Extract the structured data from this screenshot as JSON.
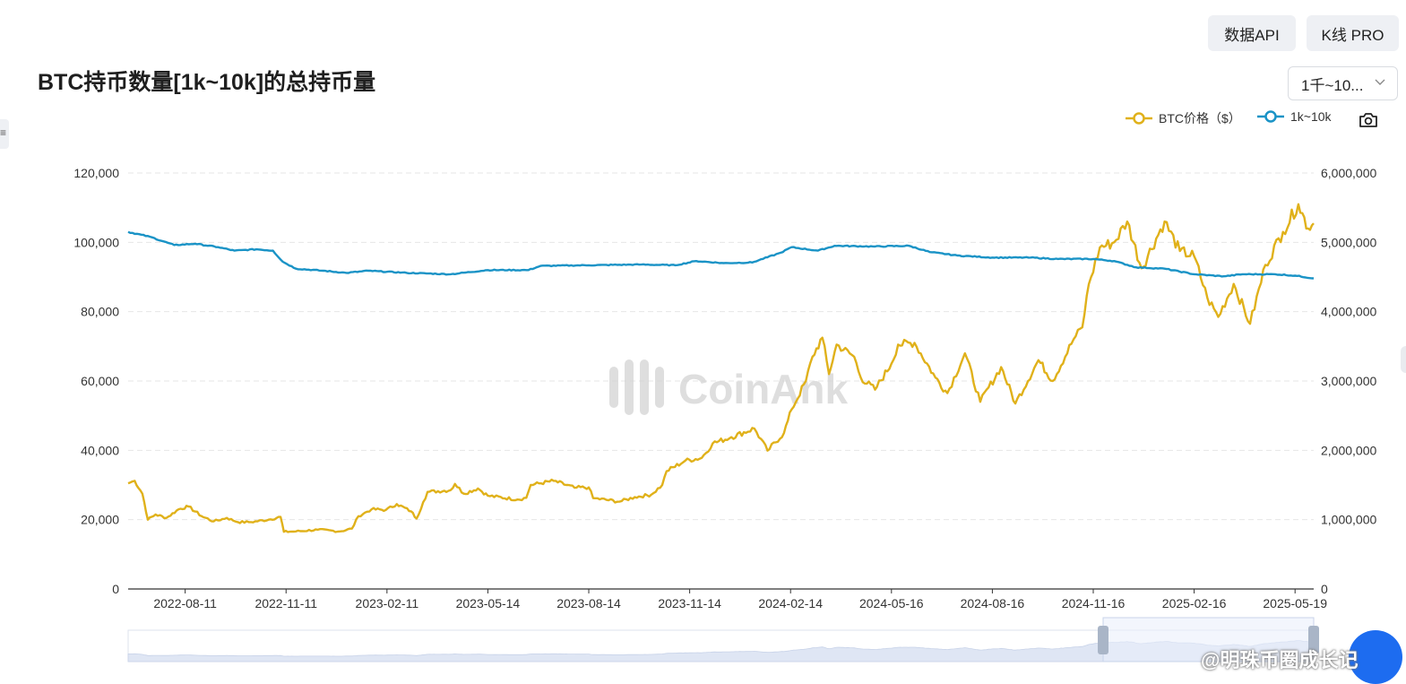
{
  "header": {
    "api_button": "数据API",
    "kline_button": "K线 PRO",
    "title": "BTC持币数量[1k~10k]的总持币量",
    "range_select": "1千~10..."
  },
  "colors": {
    "btc_price": "#e0b11a",
    "holdings": "#1a93c6",
    "grid": "#e6e6e6",
    "slider_window": "#e9eefb"
  },
  "icons": {
    "camera": "camera-icon",
    "chevron": "chevron-down-icon",
    "credit": "share-icon"
  },
  "watermark": "CoinAnk",
  "credit_text": "@明珠币圈成长记",
  "chart_data": {
    "type": "line",
    "legend_position": "top-right",
    "grid": true,
    "x_ticks": [
      "2022-08-11",
      "2022-11-11",
      "2023-02-11",
      "2023-05-14",
      "2023-08-14",
      "2023-11-14",
      "2024-02-14",
      "2024-05-16",
      "2024-08-16",
      "2024-11-16",
      "2025-02-16",
      "2025-05-19"
    ],
    "x_range": [
      "2022-06-20",
      "2025-06-05"
    ],
    "y_left": {
      "ticks": [
        "0",
        "20,000",
        "40,000",
        "60,000",
        "80,000",
        "100,000",
        "120,000"
      ],
      "range": [
        0,
        120000
      ]
    },
    "y_right": {
      "ticks": [
        "0",
        "1,000,000",
        "2,000,000",
        "3,000,000",
        "4,000,000",
        "5,000,000",
        "6,000,000"
      ],
      "range": [
        0,
        6000000
      ]
    },
    "series": [
      {
        "name": "BTC价格（$）",
        "axis": "left",
        "points": [
          [
            "2022-06-20",
            30500
          ],
          [
            "2022-06-26",
            31200
          ],
          [
            "2022-07-03",
            27500
          ],
          [
            "2022-07-08",
            20000
          ],
          [
            "2022-07-15",
            21500
          ],
          [
            "2022-07-25",
            20500
          ],
          [
            "2022-08-05",
            23000
          ],
          [
            "2022-08-14",
            23800
          ],
          [
            "2022-08-26",
            21000
          ],
          [
            "2022-09-06",
            19500
          ],
          [
            "2022-09-18",
            20500
          ],
          [
            "2022-09-28",
            19300
          ],
          [
            "2022-10-10",
            19300
          ],
          [
            "2022-10-26",
            20000
          ],
          [
            "2022-11-06",
            20800
          ],
          [
            "2022-11-09",
            16500
          ],
          [
            "2022-11-20",
            16600
          ],
          [
            "2022-12-10",
            17100
          ],
          [
            "2022-12-30",
            16600
          ],
          [
            "2023-01-10",
            17400
          ],
          [
            "2023-01-16",
            21000
          ],
          [
            "2023-01-28",
            23000
          ],
          [
            "2023-02-10",
            22800
          ],
          [
            "2023-02-20",
            24500
          ],
          [
            "2023-03-05",
            22400
          ],
          [
            "2023-03-10",
            20300
          ],
          [
            "2023-03-16",
            25000
          ],
          [
            "2023-03-20",
            28000
          ],
          [
            "2023-04-10",
            28500
          ],
          [
            "2023-04-14",
            30300
          ],
          [
            "2023-04-22",
            27500
          ],
          [
            "2023-05-05",
            29000
          ],
          [
            "2023-05-14",
            26900
          ],
          [
            "2023-06-10",
            25800
          ],
          [
            "2023-06-18",
            26300
          ],
          [
            "2023-06-22",
            30000
          ],
          [
            "2023-07-13",
            31200
          ],
          [
            "2023-08-01",
            29200
          ],
          [
            "2023-08-14",
            29300
          ],
          [
            "2023-08-18",
            26200
          ],
          [
            "2023-09-11",
            25200
          ],
          [
            "2023-09-25",
            26500
          ],
          [
            "2023-10-10",
            27200
          ],
          [
            "2023-10-20",
            30000
          ],
          [
            "2023-10-24",
            34000
          ],
          [
            "2023-11-10",
            37000
          ],
          [
            "2023-11-25",
            37800
          ],
          [
            "2023-12-05",
            42000
          ],
          [
            "2023-12-22",
            43800
          ],
          [
            "2024-01-12",
            46300
          ],
          [
            "2024-01-24",
            39900
          ],
          [
            "2024-02-08",
            45000
          ],
          [
            "2024-02-15",
            51800
          ],
          [
            "2024-02-28",
            60000
          ],
          [
            "2024-03-05",
            67000
          ],
          [
            "2024-03-14",
            72500
          ],
          [
            "2024-03-20",
            62000
          ],
          [
            "2024-03-27",
            70500
          ],
          [
            "2024-04-12",
            67000
          ],
          [
            "2024-04-18",
            61000
          ],
          [
            "2024-05-01",
            57500
          ],
          [
            "2024-05-16",
            65000
          ],
          [
            "2024-05-22",
            70500
          ],
          [
            "2024-06-06",
            71000
          ],
          [
            "2024-06-25",
            61000
          ],
          [
            "2024-07-06",
            56500
          ],
          [
            "2024-07-22",
            68000
          ],
          [
            "2024-08-05",
            54000
          ],
          [
            "2024-08-24",
            64000
          ],
          [
            "2024-09-06",
            53500
          ],
          [
            "2024-09-27",
            66000
          ],
          [
            "2024-10-10",
            60000
          ],
          [
            "2024-10-29",
            72000
          ],
          [
            "2024-11-06",
            75500
          ],
          [
            "2024-11-12",
            88000
          ],
          [
            "2024-11-22",
            98500
          ],
          [
            "2024-12-05",
            100000
          ],
          [
            "2024-12-17",
            106000
          ],
          [
            "2024-12-30",
            92500
          ],
          [
            "2025-01-20",
            106000
          ],
          [
            "2025-02-03",
            97500
          ],
          [
            "2025-02-16",
            96000
          ],
          [
            "2025-02-28",
            84000
          ],
          [
            "2025-03-10",
            78500
          ],
          [
            "2025-03-24",
            88000
          ],
          [
            "2025-04-08",
            76500
          ],
          [
            "2025-04-22",
            93500
          ],
          [
            "2025-05-08",
            103000
          ],
          [
            "2025-05-22",
            111000
          ],
          [
            "2025-05-31",
            104000
          ],
          [
            "2025-06-05",
            105500
          ]
        ]
      },
      {
        "name": "1k~10k",
        "axis": "right",
        "points": [
          [
            "2022-06-20",
            5150000
          ],
          [
            "2022-07-10",
            5080000
          ],
          [
            "2022-08-01",
            4960000
          ],
          [
            "2022-08-20",
            4980000
          ],
          [
            "2022-09-10",
            4930000
          ],
          [
            "2022-09-25",
            4880000
          ],
          [
            "2022-10-15",
            4900000
          ],
          [
            "2022-10-30",
            4880000
          ],
          [
            "2022-11-08",
            4720000
          ],
          [
            "2022-11-20",
            4620000
          ],
          [
            "2022-12-15",
            4590000
          ],
          [
            "2023-01-05",
            4560000
          ],
          [
            "2023-01-25",
            4590000
          ],
          [
            "2023-03-01",
            4560000
          ],
          [
            "2023-04-10",
            4540000
          ],
          [
            "2023-05-14",
            4600000
          ],
          [
            "2023-06-20",
            4600000
          ],
          [
            "2023-07-01",
            4660000
          ],
          [
            "2023-08-14",
            4670000
          ],
          [
            "2023-10-01",
            4680000
          ],
          [
            "2023-11-01",
            4670000
          ],
          [
            "2023-11-20",
            4730000
          ],
          [
            "2023-12-15",
            4700000
          ],
          [
            "2024-01-10",
            4710000
          ],
          [
            "2024-02-05",
            4850000
          ],
          [
            "2024-02-15",
            4930000
          ],
          [
            "2024-03-10",
            4880000
          ],
          [
            "2024-03-25",
            4950000
          ],
          [
            "2024-05-01",
            4940000
          ],
          [
            "2024-06-01",
            4950000
          ],
          [
            "2024-06-20",
            4860000
          ],
          [
            "2024-07-15",
            4810000
          ],
          [
            "2024-08-16",
            4780000
          ],
          [
            "2024-09-20",
            4780000
          ],
          [
            "2024-10-15",
            4760000
          ],
          [
            "2024-11-16",
            4760000
          ],
          [
            "2024-12-05",
            4730000
          ],
          [
            "2024-12-25",
            4640000
          ],
          [
            "2025-01-20",
            4620000
          ],
          [
            "2025-02-16",
            4540000
          ],
          [
            "2025-03-15",
            4510000
          ],
          [
            "2025-04-01",
            4540000
          ],
          [
            "2025-05-01",
            4540000
          ],
          [
            "2025-05-19",
            4520000
          ],
          [
            "2025-06-05",
            4480000
          ]
        ]
      }
    ]
  }
}
